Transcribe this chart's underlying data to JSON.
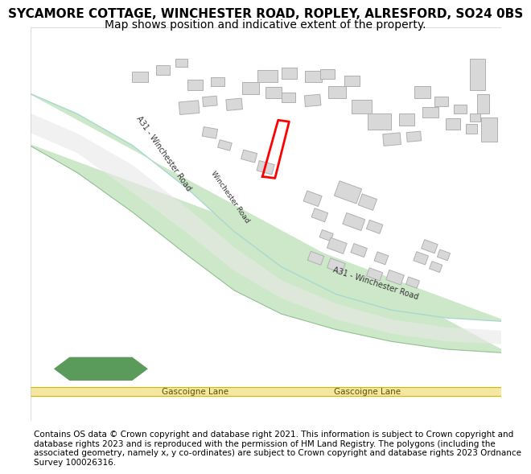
{
  "title": "SYCAMORE COTTAGE, WINCHESTER ROAD, ROPLEY, ALRESFORD, SO24 0BS",
  "subtitle": "Map shows position and indicative extent of the property.",
  "footer": "Contains OS data © Crown copyright and database right 2021. This information is subject to Crown copyright and database rights 2023 and is reproduced with the permission of HM Land Registry. The polygons (including the associated geometry, namely x, y co-ordinates) are subject to Crown copyright and database rights 2023 Ordnance Survey 100026316.",
  "bg_color": "#f8f8f8",
  "map_bg": "#ffffff",
  "road_band_color": "#c8e6c4",
  "road_line_color": "#a0d0a0",
  "road_center_color": "#d0d0d0",
  "gascoigne_color": "#f5e6a0",
  "building_color": "#d8d8d8",
  "building_edge": "#b0b0b0",
  "plot_color": "#ff0000",
  "label_a31_1": "A31 - Winchester Road",
  "label_a31_2": "A31 - Winchester Road",
  "label_winchester": "Winchester Road",
  "label_gascoigne1": "Gascoigne Lane",
  "label_gascoigne2": "Gascoigne Lane",
  "title_fontsize": 11,
  "subtitle_fontsize": 10,
  "footer_fontsize": 7.5
}
